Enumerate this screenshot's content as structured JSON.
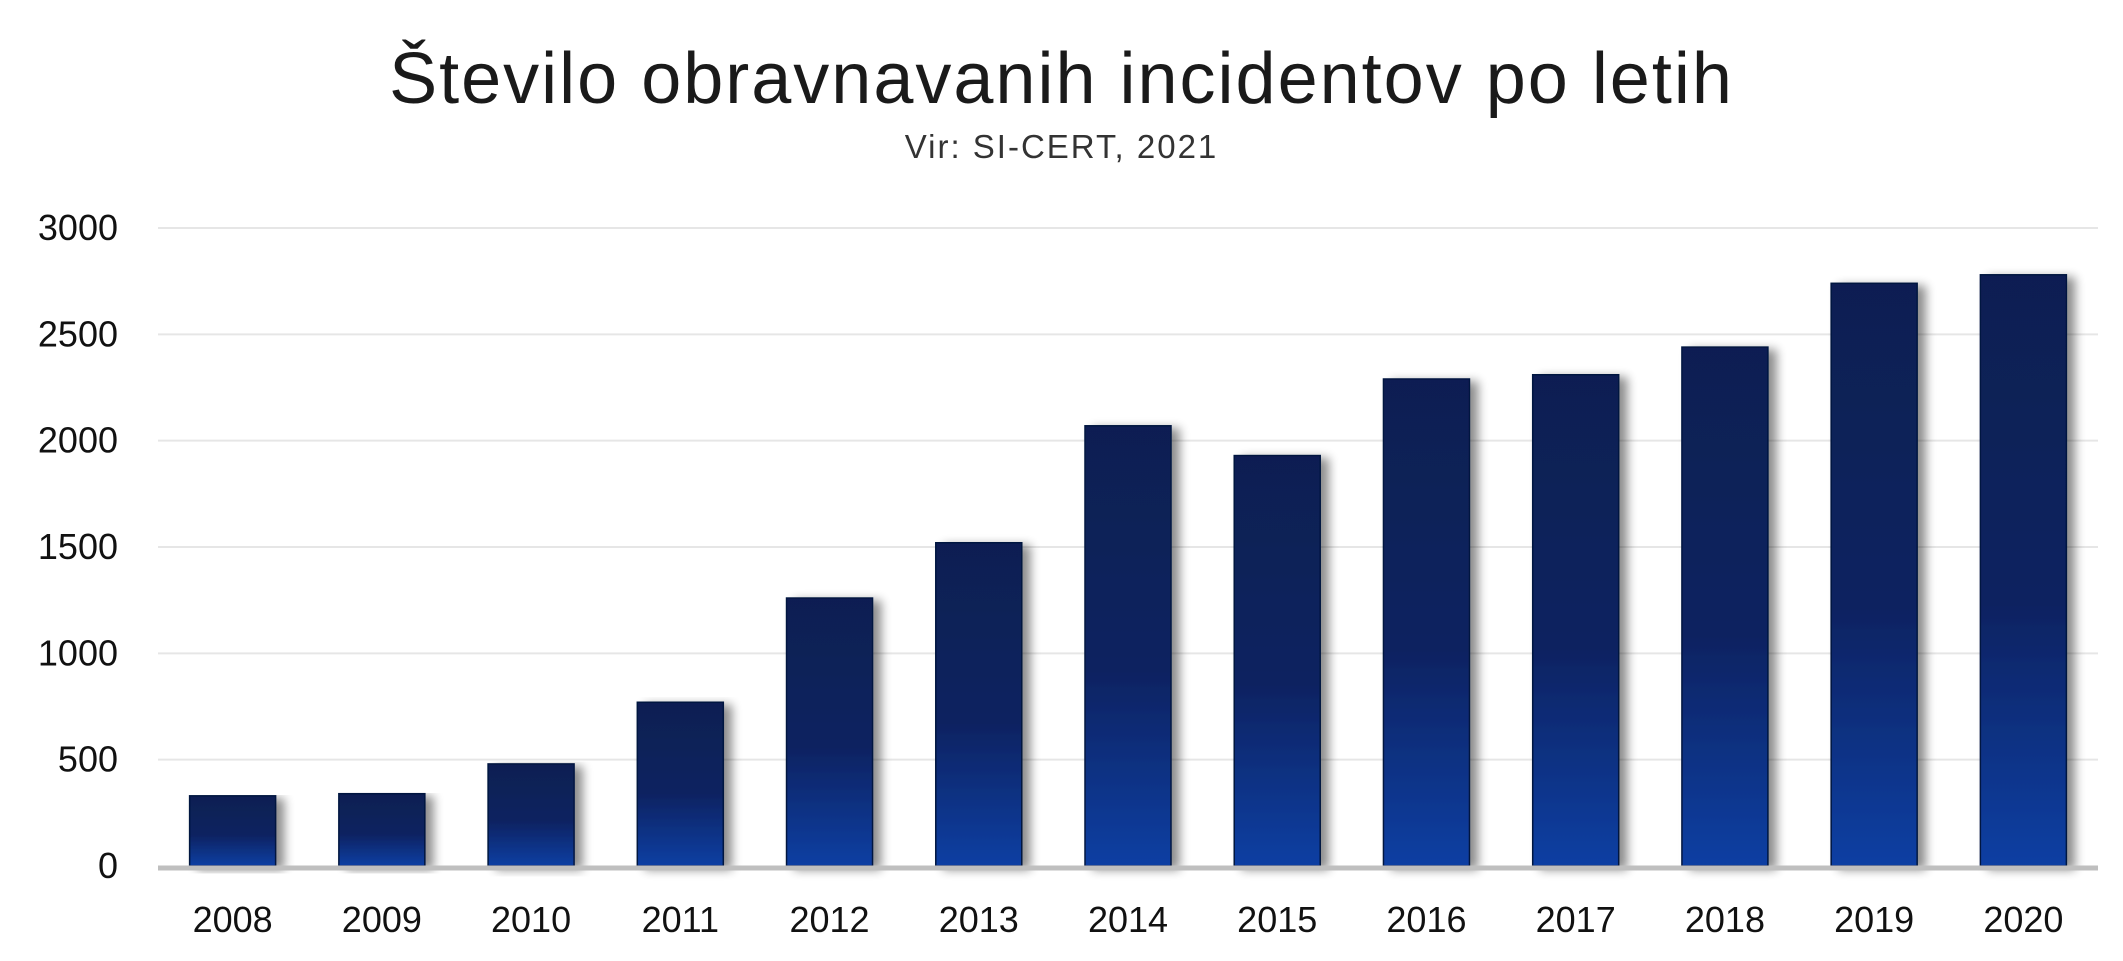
{
  "chart_data": {
    "type": "bar",
    "title": "Število obravnavanih incidentov po letih",
    "subtitle": "Vir: SI-CERT, 2021",
    "categories": [
      "2008",
      "2009",
      "2010",
      "2011",
      "2012",
      "2013",
      "2014",
      "2015",
      "2016",
      "2017",
      "2018",
      "2019",
      "2020"
    ],
    "values": [
      330,
      340,
      480,
      770,
      1260,
      1520,
      2070,
      1930,
      2290,
      2310,
      2440,
      2740,
      2780
    ],
    "ylim": [
      0,
      3000
    ],
    "yticks": [
      "0",
      "500",
      "1000",
      "1500",
      "2000",
      "2500",
      "3000"
    ],
    "xlabel": "",
    "ylabel": "",
    "grid": true,
    "legend": "none",
    "colors": {
      "bar_top": "#0b1f52",
      "bar_mid": "#0a2260",
      "bar_bottom": "#0a3fa3",
      "gridline": "#e6e6e6",
      "axis": "#bfbfbf"
    }
  }
}
